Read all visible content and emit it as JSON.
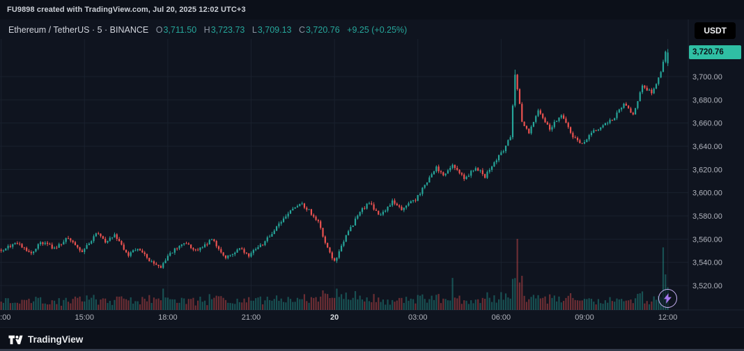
{
  "watermark_bar": {
    "text": "FU9898 created with TradingView.com, Jul 20, 2025 12:02 UTC+3"
  },
  "legend": {
    "title": "Ethereum / TetherUS · 5 · BINANCE",
    "ohlc": {
      "o_label": "O",
      "o": "3,711.50",
      "h_label": "H",
      "h": "3,723.73",
      "l_label": "L",
      "l": "3,709.13",
      "c_label": "C",
      "c": "3,720.76",
      "change": "+9.25 (+0.25%)"
    }
  },
  "currency_button": {
    "label": "USDT"
  },
  "price_badge": {
    "text": "3,720.76"
  },
  "footer": {
    "brand": "TradingView"
  },
  "colors": {
    "up": "#26a69a",
    "down": "#ef5350",
    "grid": "#1a212e",
    "axis_line": "#1d2432",
    "text": "#b2b5be",
    "bright_text": "#d8dbe0",
    "badge_bg": "#2fbfa4",
    "badge_text": "#0c1118",
    "background": "#0f141f"
  },
  "chart_data": {
    "type": "candlestick",
    "symbol": "Ethereum / TetherUS",
    "interval_minutes": 5,
    "exchange": "BINANCE",
    "current_candle": {
      "open": 3711.5,
      "high": 3723.73,
      "low": 3709.13,
      "close": 3720.76,
      "change_abs": "+9.25",
      "change_pct": "+0.25%"
    },
    "candle_count": 289,
    "y_axis": {
      "ticks": [
        {
          "v": 3700,
          "label": "3,700.00"
        },
        {
          "v": 3680,
          "label": "3,680.00"
        },
        {
          "v": 3660,
          "label": "3,660.00"
        },
        {
          "v": 3640,
          "label": "3,640.00"
        },
        {
          "v": 3620,
          "label": "3,620.00"
        },
        {
          "v": 3600,
          "label": "3,600.00"
        },
        {
          "v": 3580,
          "label": "3,580.00"
        },
        {
          "v": 3560,
          "label": "3,560.00"
        },
        {
          "v": 3540,
          "label": "3,540.00"
        },
        {
          "v": 3520,
          "label": "3,520.00"
        }
      ]
    },
    "x_axis": {
      "ticks": [
        {
          "m": 0,
          "label": "12:00"
        },
        {
          "m": 180,
          "label": "15:00"
        },
        {
          "m": 360,
          "label": "18:00"
        },
        {
          "m": 540,
          "label": "21:00"
        },
        {
          "m": 720,
          "label": "20",
          "emphasis": true
        },
        {
          "m": 900,
          "label": "03:00"
        },
        {
          "m": 1080,
          "label": "06:00"
        },
        {
          "m": 1260,
          "label": "09:00"
        },
        {
          "m": 1440,
          "label": "12:00"
        }
      ]
    },
    "price_path": {
      "minutes": [
        0,
        40,
        70,
        90,
        120,
        150,
        180,
        210,
        230,
        250,
        280,
        300,
        330,
        350,
        370,
        400,
        430,
        460,
        490,
        520,
        540,
        570,
        600,
        630,
        650,
        670,
        690,
        710,
        725,
        750,
        780,
        800,
        825,
        850,
        870,
        900,
        920,
        945,
        960,
        980,
        1005,
        1030,
        1050,
        1070,
        1090,
        1105,
        1115,
        1130,
        1145,
        1165,
        1190,
        1215,
        1240,
        1260,
        1280,
        1305,
        1330,
        1350,
        1370,
        1390,
        1410,
        1430,
        1440
      ],
      "price": [
        3550,
        3556,
        3548,
        3558,
        3552,
        3561,
        3548,
        3565,
        3558,
        3563,
        3546,
        3552,
        3540,
        3536,
        3548,
        3556,
        3550,
        3560,
        3544,
        3552,
        3546,
        3556,
        3570,
        3585,
        3591,
        3585,
        3574,
        3552,
        3541,
        3562,
        3584,
        3591,
        3580,
        3592,
        3586,
        3594,
        3606,
        3622,
        3615,
        3624,
        3612,
        3622,
        3614,
        3626,
        3636,
        3648,
        3702,
        3662,
        3652,
        3672,
        3655,
        3668,
        3648,
        3642,
        3652,
        3658,
        3665,
        3676,
        3668,
        3692,
        3686,
        3704,
        3720.76
      ]
    },
    "volume_spikes": [
      {
        "m": 350,
        "f": 0.3
      },
      {
        "m": 465,
        "f": 0.2
      },
      {
        "m": 725,
        "f": 0.3
      },
      {
        "m": 905,
        "f": 0.2
      },
      {
        "m": 975,
        "f": 0.45
      },
      {
        "m": 1080,
        "f": 0.25
      },
      {
        "m": 1115,
        "f": 1.0
      },
      {
        "m": 1125,
        "f": 0.48
      },
      {
        "m": 1430,
        "f": 0.88
      },
      {
        "m": 1435,
        "f": 0.5
      }
    ]
  }
}
